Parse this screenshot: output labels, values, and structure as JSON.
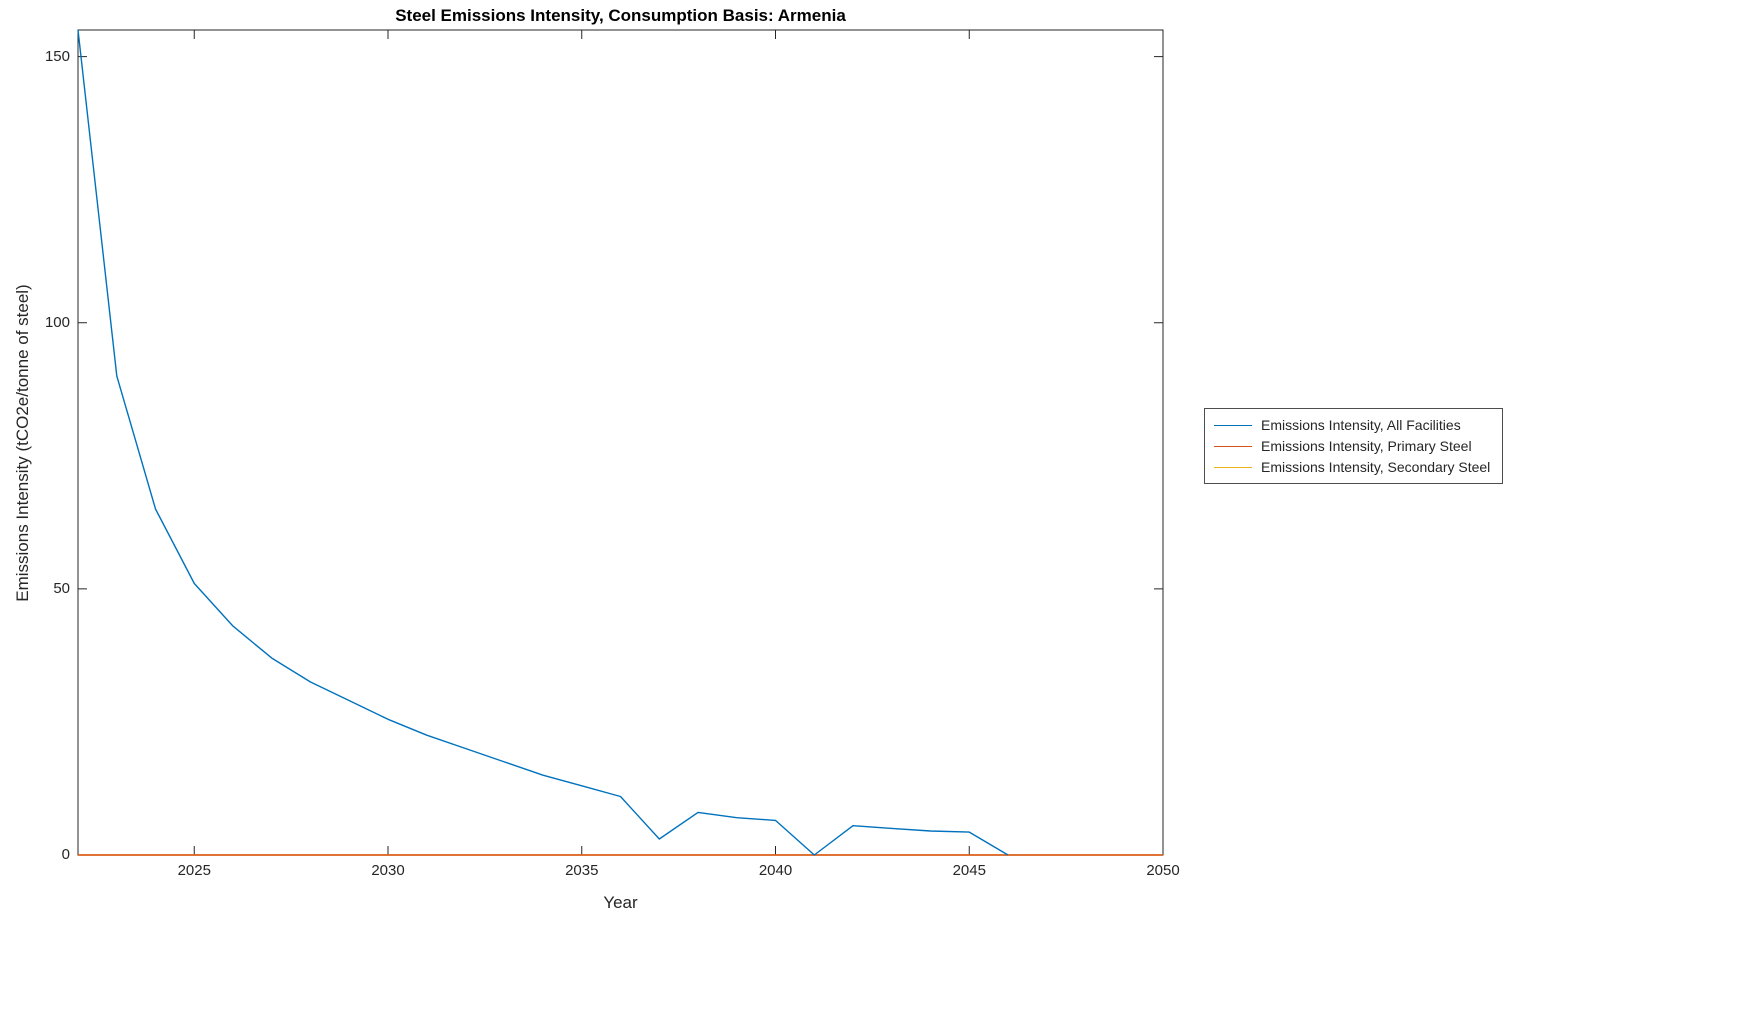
{
  "title": "Steel Emissions Intensity, Consumption Basis: Armenia",
  "xlabel": "Year",
  "ylabel": "Emissions Intensity (tCO2e/tonne of steel)",
  "chart_data": {
    "type": "line",
    "title": "Steel Emissions Intensity, Consumption Basis: Armenia",
    "xlabel": "Year",
    "ylabel": "Emissions Intensity (tCO2e/tonne of steel)",
    "xlim": [
      2022,
      2050
    ],
    "ylim": [
      0,
      155
    ],
    "xticks": [
      2025,
      2030,
      2035,
      2040,
      2045,
      2050
    ],
    "yticks": [
      0,
      50,
      100,
      150
    ],
    "grid": false,
    "legend_position": "right-outside",
    "axis_color": "#262626",
    "series": [
      {
        "name": "Emissions Intensity, All Facilities",
        "color": "#0072BD",
        "x": [
          2022,
          2023,
          2024,
          2025,
          2026,
          2027,
          2028,
          2029,
          2030,
          2031,
          2032,
          2033,
          2034,
          2035,
          2036,
          2037,
          2038,
          2039,
          2040,
          2041,
          2042,
          2043,
          2044,
          2045,
          2046
        ],
        "values": [
          155,
          90,
          65,
          51,
          43,
          37,
          32.5,
          29,
          25.5,
          22.5,
          20,
          17.5,
          15,
          13,
          11,
          3,
          8,
          7,
          6.5,
          0,
          5.5,
          5,
          4.5,
          4.3,
          0
        ]
      },
      {
        "name": "Emissions Intensity, Primary Steel",
        "color": "#D95319",
        "x": [
          2022,
          2050
        ],
        "values": [
          0,
          0
        ]
      },
      {
        "name": "Emissions Intensity, Secondary Steel",
        "color": "#EDB120",
        "x": [
          2022,
          2050
        ],
        "values": [
          0,
          0
        ]
      }
    ]
  }
}
